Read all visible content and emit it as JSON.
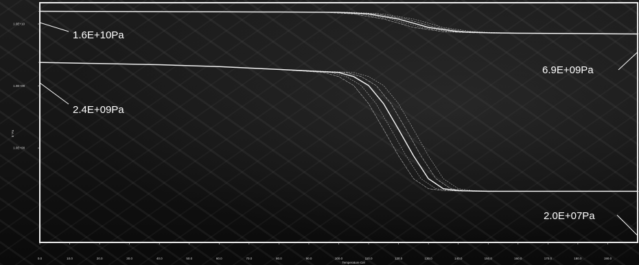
{
  "chart_data": {
    "type": "line",
    "title": "",
    "xlabel": "Temperature Cel",
    "ylabel": "E' Pa",
    "xlim": [
      0,
      200
    ],
    "ylim": [
      3000000,
      22000000000
    ],
    "y_scale": "log",
    "grid": false,
    "x_tick_labels": [
      "0.0",
      "10.0",
      "20.0",
      "30.0",
      "40.0",
      "50.0",
      "60.0",
      "70.0",
      "80.0",
      "90.0",
      "100.0",
      "110.0",
      "120.0",
      "130.0",
      "140.0",
      "150.0",
      "160.0",
      "170.0",
      "180.0",
      "190.0"
    ],
    "y_ticks": [
      {
        "value": 10000000000,
        "label": "1.0E+10"
      },
      {
        "value": 1000000000,
        "label": "1.0E+09"
      },
      {
        "value": 100000000,
        "label": "1.0E+08"
      }
    ],
    "series": [
      {
        "x": [
          0,
          20,
          40,
          60,
          80,
          100,
          110,
          120,
          125,
          130,
          140,
          150,
          160,
          180,
          200
        ],
        "values": [
          16000000000,
          15900000000,
          15800000000,
          15700000000,
          15600000000,
          15400000000,
          14500000000,
          12000000000,
          10300000000,
          8800000000,
          7500000000,
          7200000000,
          7100000000,
          7000000000,
          6900000000
        ]
      },
      {
        "x": [
          0,
          20,
          40,
          60,
          80,
          100,
          105,
          110,
          115,
          120,
          125,
          130,
          135,
          140,
          150,
          160,
          180,
          200
        ],
        "values": [
          2400000000,
          2300000000,
          2200000000,
          2050000000,
          1850000000,
          1650000000,
          1420000000,
          1020000000,
          520000000,
          200000000,
          75000000,
          32000000,
          22000000,
          20500000,
          20000000,
          20000000,
          20000000,
          20000000
        ]
      }
    ],
    "annotations": [
      "1.6E+10Pa",
      "2.4E+09Pa",
      "6.9E+09Pa",
      "2.0E+07Pa"
    ]
  },
  "colors": {
    "curve": "#f2f2f2",
    "frame": "#f0f0f0",
    "text": "#ffffff"
  }
}
